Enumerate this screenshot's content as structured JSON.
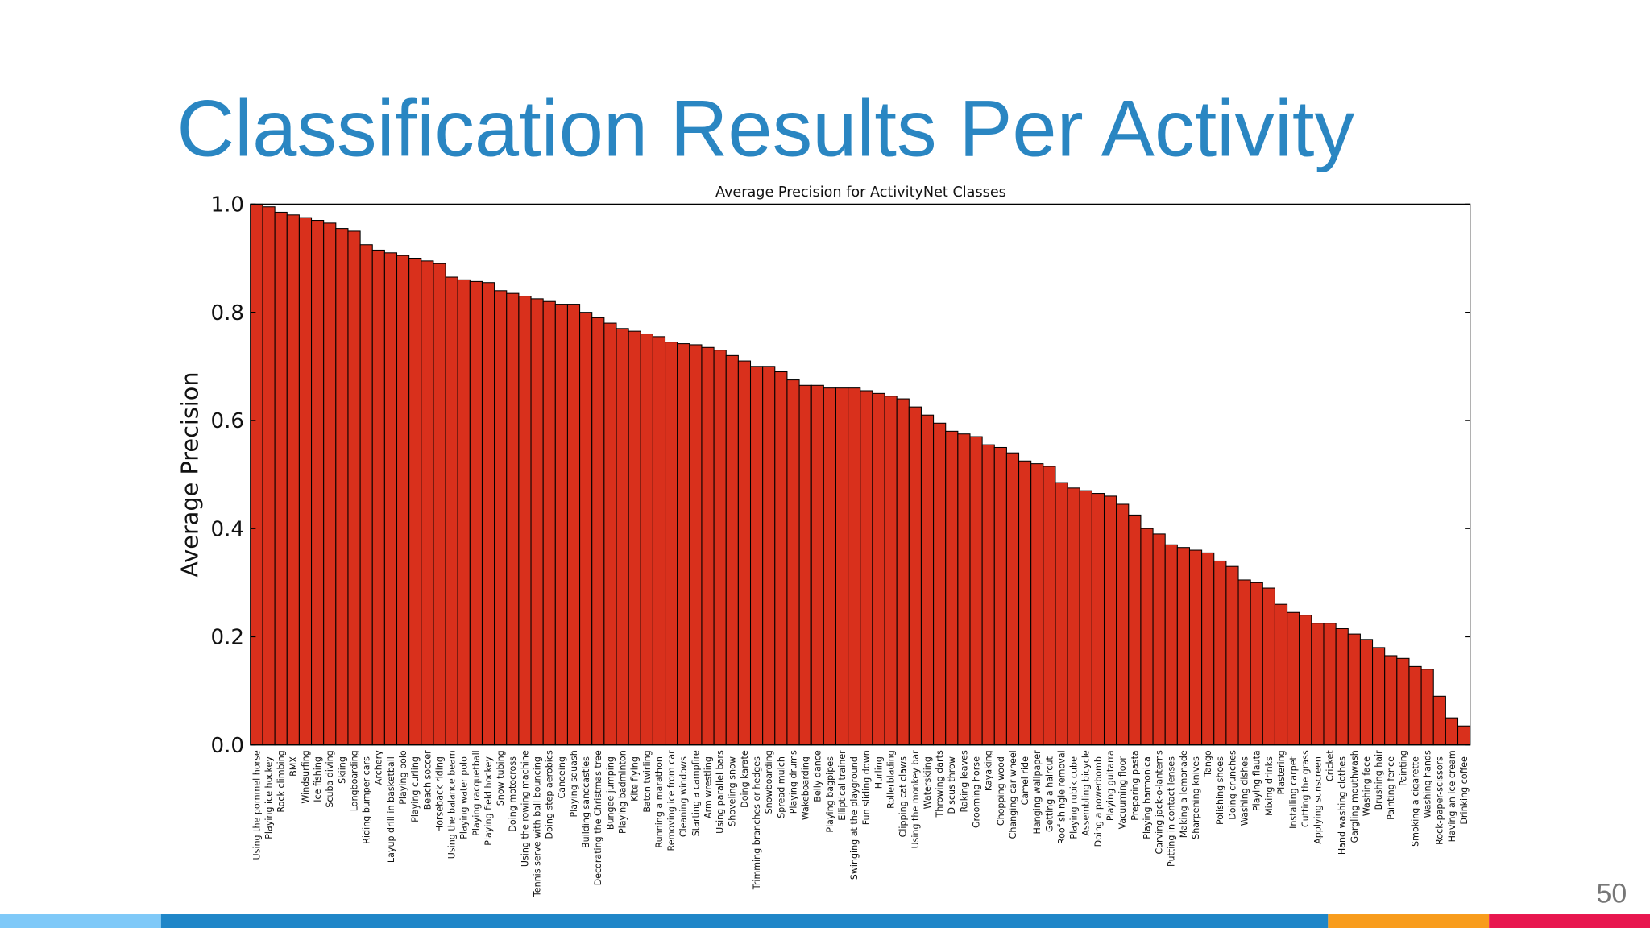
{
  "slide": {
    "title": "Classification Results Per Activity",
    "page_number": "50"
  },
  "chart_data": {
    "type": "bar",
    "title": "Average Precision for ActivityNet Classes",
    "ylabel": "Average Precision",
    "color": "#d9301c",
    "categories": [
      "Using the pommel horse",
      "Playing ice hockey",
      "Rock climbing",
      "BMX",
      "Windsurfing",
      "Ice fishing",
      "Scuba diving",
      "Skiing",
      "Longboarding",
      "Riding bumper cars",
      "Archery",
      "Layup drill in basketball",
      "Playing polo",
      "Playing curling",
      "Beach soccer",
      "Horseback riding",
      "Using the balance beam",
      "Playing water polo",
      "Playing racquetball",
      "Playing field hockey",
      "Snow tubing",
      "Doing motocross",
      "Using the rowing machine",
      "Tennis serve with ball bouncing",
      "Doing step aerobics",
      "Canoeing",
      "Playing squash",
      "Building sandcastles",
      "Decorating the Christmas tree",
      "Bungee jumping",
      "Playing badminton",
      "Kite flying",
      "Baton twirling",
      "Running a marathon",
      "Removing ice from car",
      "Cleaning windows",
      "Starting a campfire",
      "Arm wrestling",
      "Using parallel bars",
      "Shoveling snow",
      "Doing karate",
      "Trimming branches or hedges",
      "Snowboarding",
      "Spread mulch",
      "Playing drums",
      "Wakeboarding",
      "Belly dance",
      "Playing bagpipes",
      "Elliptical trainer",
      "Swinging at the playground",
      "Fun sliding down",
      "Hurling",
      "Rollerblading",
      "Clipping cat claws",
      "Using the monkey bar",
      "Waterskiing",
      "Throwing darts",
      "Discus throw",
      "Raking leaves",
      "Grooming horse",
      "Kayaking",
      "Chopping wood",
      "Changing car wheel",
      "Camel ride",
      "Hanging wallpaper",
      "Getting a haircut",
      "Roof shingle removal",
      "Playing rubik cube",
      "Assembling bicycle",
      "Doing a powerbomb",
      "Playing guitarra",
      "Vacuuming floor",
      "Preparing pasta",
      "Playing harmonica",
      "Carving jack-o-lanterns",
      "Putting in contact lenses",
      "Making a lemonade",
      "Sharpening knives",
      "Tango",
      "Polishing shoes",
      "Doing crunches",
      "Washing dishes",
      "Playing flauta",
      "Mixing drinks",
      "Plastering",
      "Installing carpet",
      "Cutting the grass",
      "Applying sunscreen",
      "Cricket",
      "Hand washing clothes",
      "Gargling mouthwash",
      "Washing face",
      "Brushing hair",
      "Painting fence",
      "Painting",
      "Smoking a cigarette",
      "Washing hands",
      "Rock-paper-scissors",
      "Having an ice cream",
      "Drinking coffee"
    ],
    "values": [
      1.0,
      0.995,
      0.985,
      0.98,
      0.975,
      0.97,
      0.965,
      0.955,
      0.95,
      0.925,
      0.915,
      0.91,
      0.905,
      0.9,
      0.895,
      0.89,
      0.865,
      0.86,
      0.857,
      0.855,
      0.84,
      0.835,
      0.83,
      0.825,
      0.82,
      0.815,
      0.815,
      0.8,
      0.79,
      0.78,
      0.77,
      0.765,
      0.76,
      0.755,
      0.745,
      0.742,
      0.74,
      0.735,
      0.73,
      0.72,
      0.71,
      0.7,
      0.7,
      0.69,
      0.675,
      0.665,
      0.665,
      0.66,
      0.66,
      0.66,
      0.655,
      0.65,
      0.645,
      0.64,
      0.625,
      0.61,
      0.595,
      0.58,
      0.575,
      0.57,
      0.555,
      0.55,
      0.54,
      0.525,
      0.52,
      0.515,
      0.485,
      0.475,
      0.47,
      0.465,
      0.46,
      0.445,
      0.425,
      0.4,
      0.39,
      0.37,
      0.365,
      0.36,
      0.355,
      0.34,
      0.33,
      0.305,
      0.3,
      0.29,
      0.26,
      0.245,
      0.24,
      0.225,
      0.225,
      0.215,
      0.205,
      0.195,
      0.18,
      0.165,
      0.16,
      0.145,
      0.14,
      0.09,
      0.05,
      0.035
    ],
    "ylim": [
      0,
      1
    ],
    "yticks": [
      {
        "value": 0,
        "label": "0.0"
      },
      {
        "value": 0.2,
        "label": "0.2"
      },
      {
        "value": 0.4,
        "label": "0.4"
      },
      {
        "value": 0.6,
        "label": "0.6"
      },
      {
        "value": 0.8,
        "label": "0.8"
      },
      {
        "value": 1,
        "label": "1.0"
      }
    ]
  }
}
